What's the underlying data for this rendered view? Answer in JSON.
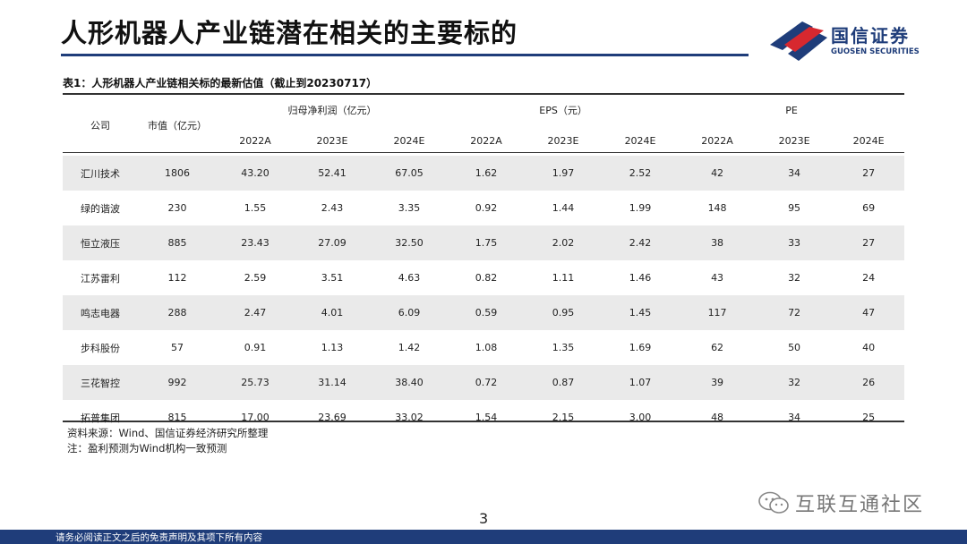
{
  "header": {
    "title": "人形机器人产业链潜在相关的主要标的",
    "logo_name": "国信证券",
    "logo_sub": "GUOSEN SECURITIES",
    "colors": {
      "brand_blue": "#1f3d7a",
      "brand_red": "#d7282f"
    }
  },
  "table": {
    "caption": "表1：人形机器人产业链相关标的最新估值（截止到20230717）",
    "headers": {
      "company": "公司",
      "market_cap": "市值（亿元）",
      "profit_group": "归母净利润（亿元）",
      "eps_group": "EPS（元）",
      "pe_group": "PE",
      "years": [
        "2022A",
        "2023E",
        "2024E",
        "2022A",
        "2023E",
        "2024E",
        "2022A",
        "2023E",
        "2024E"
      ]
    },
    "rows": [
      [
        "汇川技术",
        "1806",
        "43.20",
        "52.41",
        "67.05",
        "1.62",
        "1.97",
        "2.52",
        "42",
        "34",
        "27"
      ],
      [
        "绿的谐波",
        "230",
        "1.55",
        "2.43",
        "3.35",
        "0.92",
        "1.44",
        "1.99",
        "148",
        "95",
        "69"
      ],
      [
        "恒立液压",
        "885",
        "23.43",
        "27.09",
        "32.50",
        "1.75",
        "2.02",
        "2.42",
        "38",
        "33",
        "27"
      ],
      [
        "江苏雷利",
        "112",
        "2.59",
        "3.51",
        "4.63",
        "0.82",
        "1.11",
        "1.46",
        "43",
        "32",
        "24"
      ],
      [
        "鸣志电器",
        "288",
        "2.47",
        "4.01",
        "6.09",
        "0.59",
        "0.95",
        "1.45",
        "117",
        "72",
        "47"
      ],
      [
        "步科股份",
        "57",
        "0.91",
        "1.13",
        "1.42",
        "1.08",
        "1.35",
        "1.69",
        "62",
        "50",
        "40"
      ],
      [
        "三花智控",
        "992",
        "25.73",
        "31.14",
        "38.40",
        "0.72",
        "0.87",
        "1.07",
        "39",
        "32",
        "26"
      ],
      [
        "拓普集团",
        "815",
        "17.00",
        "23.69",
        "33.02",
        "1.54",
        "2.15",
        "3.00",
        "48",
        "34",
        "25"
      ]
    ]
  },
  "notes": {
    "source": "资料来源：Wind、国信证券经济研究所整理",
    "note": "注：盈利预测为Wind机构一致预测"
  },
  "page_number": "3",
  "watermark": {
    "text": "互联互通社区",
    "icon": "wechat-icon"
  },
  "footer": {
    "text": "请务必阅读正文之后的免责声明及其项下所有内容"
  }
}
